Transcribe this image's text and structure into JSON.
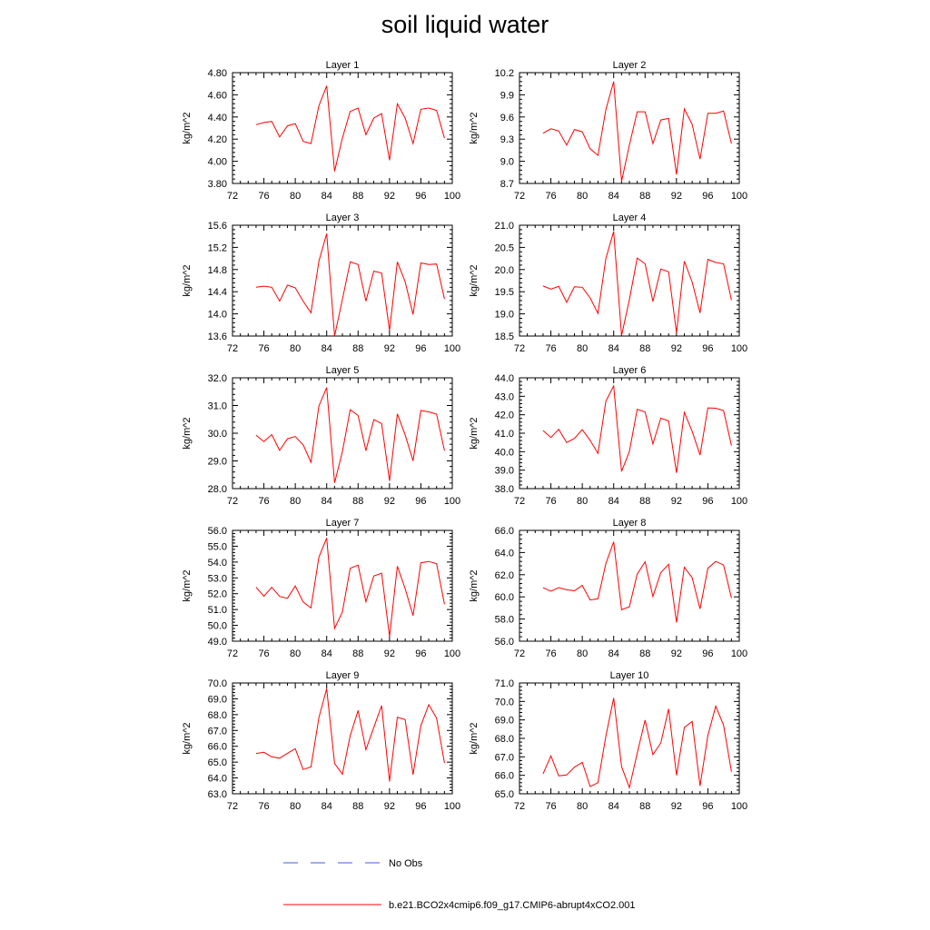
{
  "title": "soil liquid water",
  "legend": {
    "obs_label": "No Obs",
    "model_label": "b.e21.BCO2x4cmip6.f09_g17.CMIP6-abrupt4xCO2.001",
    "model_color": "#ff0000",
    "obs_color": "#4a5ad0"
  },
  "chart_data": [
    {
      "type": "line",
      "title": "Layer 1",
      "ylabel": "kg/m^2",
      "xlim": [
        72,
        100
      ],
      "ylim": [
        3.8,
        4.8
      ],
      "yticks": [
        "3.80",
        "4.00",
        "4.20",
        "4.40",
        "4.60",
        "4.80"
      ],
      "xticks": [
        "72",
        "76",
        "80",
        "84",
        "88",
        "92",
        "96",
        "100"
      ],
      "x": [
        75,
        76,
        77,
        78,
        79,
        80,
        81,
        82,
        83,
        84,
        85,
        86,
        87,
        88,
        89,
        90,
        91,
        92,
        93,
        94,
        95,
        96,
        97,
        98,
        99
      ],
      "series": [
        {
          "values": [
            4.33,
            4.35,
            4.36,
            4.22,
            4.32,
            4.34,
            4.18,
            4.16,
            4.5,
            4.68,
            3.91,
            4.21,
            4.45,
            4.48,
            4.24,
            4.39,
            4.43,
            4.01,
            4.52,
            4.39,
            4.16,
            4.47,
            4.48,
            4.46,
            4.21
          ]
        }
      ]
    },
    {
      "type": "line",
      "title": "Layer 2",
      "ylabel": "kg/m^2",
      "xlim": [
        72,
        100
      ],
      "ylim": [
        8.7,
        10.2
      ],
      "yticks": [
        "8.7",
        "9.0",
        "9.3",
        "9.6",
        "9.9",
        "10.2"
      ],
      "xticks": [
        "72",
        "76",
        "80",
        "84",
        "88",
        "92",
        "96",
        "100"
      ],
      "x": [
        75,
        76,
        77,
        78,
        79,
        80,
        81,
        82,
        83,
        84,
        85,
        86,
        87,
        88,
        89,
        90,
        91,
        92,
        93,
        94,
        95,
        96,
        97,
        98,
        99
      ],
      "series": [
        {
          "values": [
            9.38,
            9.44,
            9.41,
            9.22,
            9.43,
            9.4,
            9.17,
            9.08,
            9.7,
            10.08,
            8.73,
            9.22,
            9.67,
            9.67,
            9.24,
            9.56,
            9.58,
            8.82,
            9.71,
            9.5,
            9.03,
            9.65,
            9.65,
            9.68,
            9.24
          ]
        }
      ]
    },
    {
      "type": "line",
      "title": "Layer 3",
      "ylabel": "kg/m^2",
      "xlim": [
        72,
        100
      ],
      "ylim": [
        13.6,
        15.6
      ],
      "yticks": [
        "13.6",
        "14.0",
        "14.4",
        "14.8",
        "15.2",
        "15.6"
      ],
      "xticks": [
        "72",
        "76",
        "80",
        "84",
        "88",
        "92",
        "96",
        "100"
      ],
      "x": [
        75,
        76,
        77,
        78,
        79,
        80,
        81,
        82,
        83,
        84,
        85,
        86,
        87,
        88,
        89,
        90,
        91,
        92,
        93,
        94,
        95,
        96,
        97,
        98,
        99
      ],
      "series": [
        {
          "values": [
            14.48,
            14.5,
            14.48,
            14.23,
            14.52,
            14.47,
            14.23,
            14.02,
            14.95,
            15.45,
            13.6,
            14.26,
            14.94,
            14.89,
            14.23,
            14.77,
            14.74,
            13.7,
            14.94,
            14.58,
            13.99,
            14.92,
            14.89,
            14.9,
            14.27
          ]
        }
      ]
    },
    {
      "type": "line",
      "title": "Layer 4",
      "ylabel": "kg/m^2",
      "xlim": [
        72,
        100
      ],
      "ylim": [
        18.5,
        21.0
      ],
      "yticks": [
        "18.5",
        "19.0",
        "19.5",
        "20.0",
        "20.5",
        "21.0"
      ],
      "xticks": [
        "72",
        "76",
        "80",
        "84",
        "88",
        "92",
        "96",
        "100"
      ],
      "x": [
        75,
        76,
        77,
        78,
        79,
        80,
        81,
        82,
        83,
        84,
        85,
        86,
        87,
        88,
        89,
        90,
        91,
        92,
        93,
        94,
        95,
        96,
        97,
        98,
        99
      ],
      "series": [
        {
          "values": [
            19.63,
            19.56,
            19.62,
            19.26,
            19.61,
            19.6,
            19.36,
            19.01,
            20.25,
            20.86,
            18.51,
            19.32,
            20.26,
            20.13,
            19.28,
            20.01,
            19.95,
            18.57,
            20.19,
            19.72,
            19.02,
            20.23,
            20.16,
            20.13,
            19.31
          ]
        }
      ]
    },
    {
      "type": "line",
      "title": "Layer 5",
      "ylabel": "kg/m^2",
      "xlim": [
        72,
        100
      ],
      "ylim": [
        28.0,
        32.0
      ],
      "yticks": [
        "28.0",
        "29.0",
        "30.0",
        "31.0",
        "32.0"
      ],
      "xticks": [
        "72",
        "76",
        "80",
        "84",
        "88",
        "92",
        "96",
        "100"
      ],
      "x": [
        75,
        76,
        77,
        78,
        79,
        80,
        81,
        82,
        83,
        84,
        85,
        86,
        87,
        88,
        89,
        90,
        91,
        92,
        93,
        94,
        95,
        96,
        97,
        98,
        99
      ],
      "series": [
        {
          "values": [
            29.93,
            29.7,
            29.95,
            29.38,
            29.8,
            29.88,
            29.58,
            28.95,
            30.98,
            31.65,
            28.21,
            29.33,
            30.85,
            30.64,
            29.37,
            30.49,
            30.35,
            28.28,
            30.7,
            29.94,
            29.0,
            30.82,
            30.77,
            30.69,
            29.37
          ]
        }
      ]
    },
    {
      "type": "line",
      "title": "Layer 6",
      "ylabel": "kg/m^2",
      "xlim": [
        72,
        100
      ],
      "ylim": [
        38.0,
        44.0
      ],
      "yticks": [
        "38.0",
        "39.0",
        "40.0",
        "41.0",
        "42.0",
        "43.0",
        "44.0"
      ],
      "xticks": [
        "72",
        "76",
        "80",
        "84",
        "88",
        "92",
        "96",
        "100"
      ],
      "x": [
        75,
        76,
        77,
        78,
        79,
        80,
        81,
        82,
        83,
        84,
        85,
        86,
        87,
        88,
        89,
        90,
        91,
        92,
        93,
        94,
        95,
        96,
        97,
        98,
        99
      ],
      "series": [
        {
          "values": [
            41.15,
            40.77,
            41.21,
            40.5,
            40.72,
            41.19,
            40.61,
            39.91,
            42.73,
            43.56,
            38.93,
            40.01,
            42.3,
            42.15,
            40.42,
            41.81,
            41.67,
            38.85,
            42.13,
            41.11,
            39.82,
            42.37,
            42.35,
            42.23,
            40.33
          ]
        }
      ]
    },
    {
      "type": "line",
      "title": "Layer 7",
      "ylabel": "kg/m^2",
      "xlim": [
        72,
        100
      ],
      "ylim": [
        49.0,
        56.0
      ],
      "yticks": [
        "49.0",
        "50.0",
        "51.0",
        "52.0",
        "53.0",
        "54.0",
        "55.0",
        "56.0"
      ],
      "xticks": [
        "72",
        "76",
        "80",
        "84",
        "88",
        "92",
        "96",
        "100"
      ],
      "x": [
        75,
        76,
        77,
        78,
        79,
        80,
        81,
        82,
        83,
        84,
        85,
        86,
        87,
        88,
        89,
        90,
        91,
        92,
        93,
        94,
        95,
        96,
        97,
        98,
        99
      ],
      "series": [
        {
          "values": [
            52.41,
            51.84,
            52.41,
            51.83,
            51.71,
            52.49,
            51.48,
            51.1,
            54.31,
            55.52,
            49.81,
            50.85,
            53.61,
            53.8,
            51.49,
            53.12,
            53.29,
            49.29,
            53.74,
            52.32,
            50.61,
            53.95,
            54.04,
            53.9,
            51.33
          ]
        }
      ]
    },
    {
      "type": "line",
      "title": "Layer 8",
      "ylabel": "kg/m^2",
      "xlim": [
        72,
        100
      ],
      "ylim": [
        56.0,
        66.0
      ],
      "yticks": [
        "56.0",
        "58.0",
        "60.0",
        "62.0",
        "64.0",
        "66.0"
      ],
      "xticks": [
        "72",
        "76",
        "80",
        "84",
        "88",
        "92",
        "96",
        "100"
      ],
      "x": [
        75,
        76,
        77,
        78,
        79,
        80,
        81,
        82,
        83,
        84,
        85,
        86,
        87,
        88,
        89,
        90,
        91,
        92,
        93,
        94,
        95,
        96,
        97,
        98,
        99
      ],
      "series": [
        {
          "values": [
            60.83,
            60.51,
            60.84,
            60.64,
            60.55,
            61.03,
            59.72,
            59.83,
            63.0,
            64.97,
            58.84,
            59.11,
            62.05,
            63.17,
            60.03,
            62.19,
            62.94,
            57.69,
            62.67,
            61.74,
            58.92,
            62.58,
            63.2,
            62.88,
            59.89
          ]
        }
      ]
    },
    {
      "type": "line",
      "title": "Layer 9",
      "ylabel": "kg/m^2",
      "xlim": [
        72,
        100
      ],
      "ylim": [
        63.0,
        70.0
      ],
      "yticks": [
        "63.0",
        "64.0",
        "65.0",
        "66.0",
        "67.0",
        "68.0",
        "69.0",
        "70.0"
      ],
      "xticks": [
        "72",
        "76",
        "80",
        "84",
        "88",
        "92",
        "96",
        "100"
      ],
      "x": [
        75,
        76,
        77,
        78,
        79,
        80,
        81,
        82,
        83,
        84,
        85,
        86,
        87,
        88,
        89,
        90,
        91,
        92,
        93,
        94,
        95,
        96,
        97,
        98,
        99
      ],
      "series": [
        {
          "values": [
            65.55,
            65.62,
            65.33,
            65.25,
            65.56,
            65.85,
            64.53,
            64.69,
            67.8,
            69.64,
            64.91,
            64.24,
            66.67,
            68.26,
            65.78,
            67.2,
            68.57,
            63.78,
            67.83,
            67.69,
            64.21,
            67.31,
            68.63,
            67.78,
            64.94
          ]
        }
      ]
    },
    {
      "type": "line",
      "title": "Layer 10",
      "ylabel": "kg/m^2",
      "xlim": [
        72,
        100
      ],
      "ylim": [
        65.0,
        71.0
      ],
      "yticks": [
        "65.0",
        "66.0",
        "67.0",
        "68.0",
        "69.0",
        "70.0",
        "71.0"
      ],
      "xticks": [
        "72",
        "76",
        "80",
        "84",
        "88",
        "92",
        "96",
        "100"
      ],
      "x": [
        75,
        76,
        77,
        78,
        79,
        80,
        81,
        82,
        83,
        84,
        85,
        86,
        87,
        88,
        89,
        90,
        91,
        92,
        93,
        94,
        95,
        96,
        97,
        98,
        99
      ],
      "series": [
        {
          "values": [
            66.07,
            67.05,
            65.97,
            66.02,
            66.44,
            66.7,
            65.39,
            65.6,
            68.12,
            70.19,
            66.47,
            65.33,
            67.19,
            68.99,
            67.12,
            67.75,
            69.6,
            66.0,
            68.59,
            68.92,
            65.43,
            68.15,
            69.74,
            68.72,
            66.19
          ]
        }
      ]
    }
  ]
}
